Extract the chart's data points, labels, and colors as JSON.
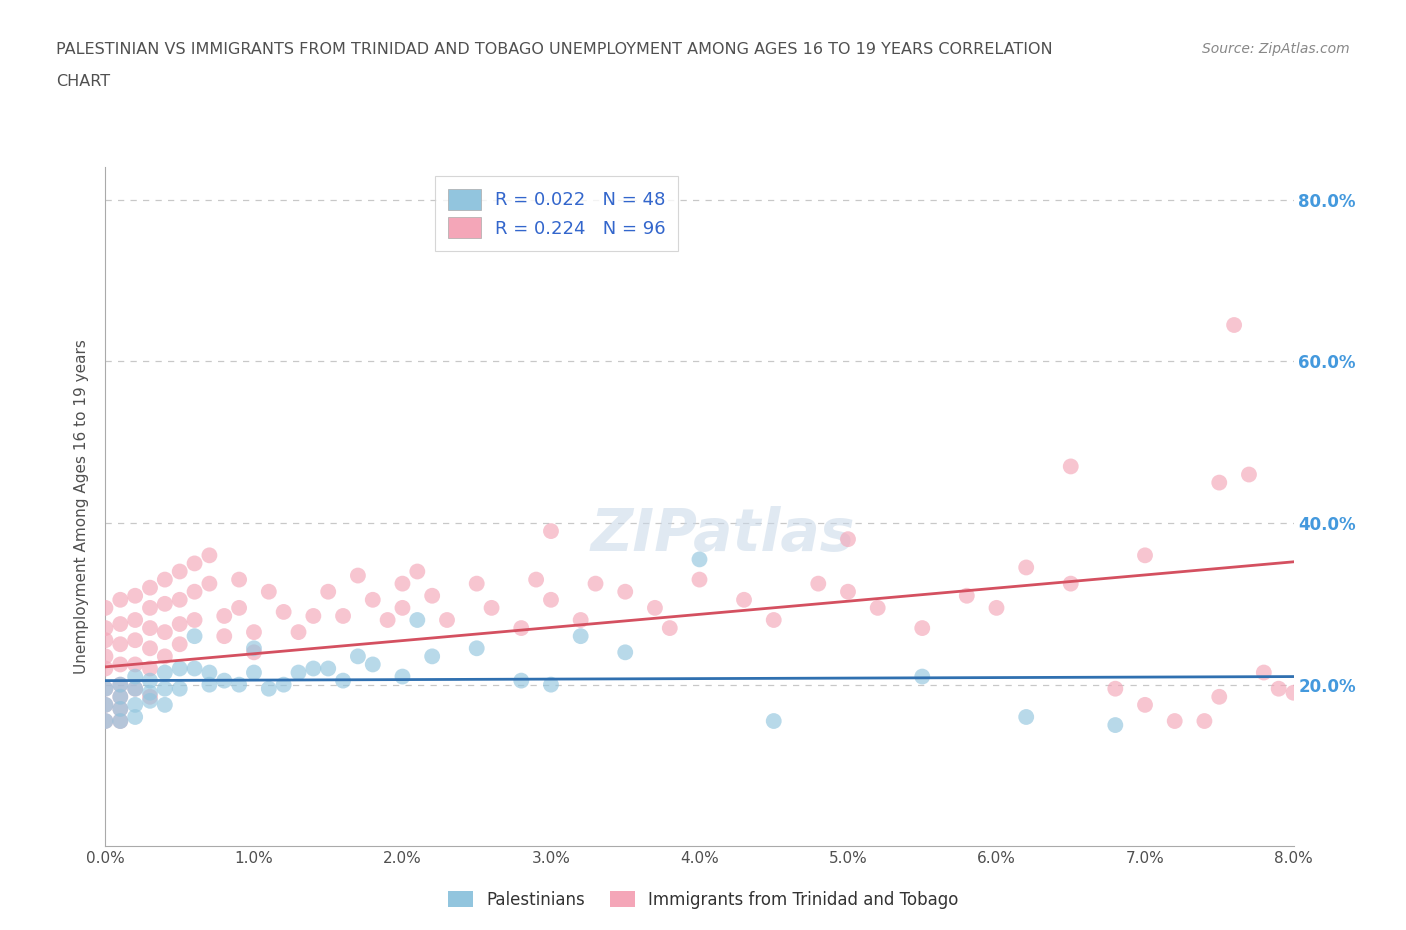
{
  "title_line1": "PALESTINIAN VS IMMIGRANTS FROM TRINIDAD AND TOBAGO UNEMPLOYMENT AMONG AGES 16 TO 19 YEARS CORRELATION",
  "title_line2": "CHART",
  "source": "Source: ZipAtlas.com",
  "ylabel": "Unemployment Among Ages 16 to 19 years",
  "xlim": [
    0.0,
    0.08
  ],
  "ylim": [
    0.0,
    0.84
  ],
  "xticks": [
    0.0,
    0.01,
    0.02,
    0.03,
    0.04,
    0.05,
    0.06,
    0.07,
    0.08
  ],
  "xticklabels": [
    "0.0%",
    "1.0%",
    "2.0%",
    "3.0%",
    "4.0%",
    "5.0%",
    "6.0%",
    "7.0%",
    "8.0%"
  ],
  "ytick_positions": [
    0.2,
    0.4,
    0.6,
    0.8
  ],
  "ytick_labels_right": [
    "20.0%",
    "40.0%",
    "60.0%",
    "80.0%"
  ],
  "r_blue": 0.022,
  "n_blue": 48,
  "r_pink": 0.224,
  "n_pink": 96,
  "blue_color": "#92c5de",
  "pink_color": "#f4a6b8",
  "blue_line_color": "#3070b0",
  "pink_line_color": "#d45060",
  "watermark": "ZIPatlas",
  "blue_scatter_x": [
    0.0,
    0.0,
    0.0,
    0.001,
    0.001,
    0.001,
    0.001,
    0.002,
    0.002,
    0.002,
    0.002,
    0.003,
    0.003,
    0.003,
    0.004,
    0.004,
    0.004,
    0.005,
    0.005,
    0.006,
    0.006,
    0.007,
    0.007,
    0.008,
    0.009,
    0.01,
    0.01,
    0.011,
    0.012,
    0.013,
    0.014,
    0.015,
    0.016,
    0.017,
    0.018,
    0.02,
    0.021,
    0.022,
    0.025,
    0.028,
    0.03,
    0.032,
    0.035,
    0.04,
    0.045,
    0.055,
    0.062,
    0.068
  ],
  "blue_scatter_y": [
    0.195,
    0.175,
    0.155,
    0.2,
    0.185,
    0.17,
    0.155,
    0.21,
    0.195,
    0.175,
    0.16,
    0.205,
    0.19,
    0.18,
    0.215,
    0.195,
    0.175,
    0.22,
    0.195,
    0.26,
    0.22,
    0.215,
    0.2,
    0.205,
    0.2,
    0.245,
    0.215,
    0.195,
    0.2,
    0.215,
    0.22,
    0.22,
    0.205,
    0.235,
    0.225,
    0.21,
    0.28,
    0.235,
    0.245,
    0.205,
    0.2,
    0.26,
    0.24,
    0.355,
    0.155,
    0.21,
    0.16,
    0.15
  ],
  "pink_scatter_x": [
    0.0,
    0.0,
    0.0,
    0.0,
    0.0,
    0.0,
    0.0,
    0.0,
    0.001,
    0.001,
    0.001,
    0.001,
    0.001,
    0.001,
    0.001,
    0.001,
    0.002,
    0.002,
    0.002,
    0.002,
    0.002,
    0.003,
    0.003,
    0.003,
    0.003,
    0.003,
    0.003,
    0.004,
    0.004,
    0.004,
    0.004,
    0.005,
    0.005,
    0.005,
    0.005,
    0.006,
    0.006,
    0.006,
    0.007,
    0.007,
    0.008,
    0.008,
    0.009,
    0.009,
    0.01,
    0.01,
    0.011,
    0.012,
    0.013,
    0.014,
    0.015,
    0.016,
    0.017,
    0.018,
    0.019,
    0.02,
    0.02,
    0.021,
    0.022,
    0.023,
    0.025,
    0.026,
    0.028,
    0.029,
    0.03,
    0.032,
    0.033,
    0.035,
    0.037,
    0.038,
    0.04,
    0.043,
    0.045,
    0.048,
    0.05,
    0.052,
    0.055,
    0.058,
    0.06,
    0.062,
    0.065,
    0.068,
    0.07,
    0.072,
    0.074,
    0.075,
    0.076,
    0.077,
    0.078,
    0.079,
    0.03,
    0.05,
    0.065,
    0.07,
    0.075,
    0.08
  ],
  "pink_scatter_y": [
    0.22,
    0.255,
    0.295,
    0.27,
    0.235,
    0.195,
    0.175,
    0.155,
    0.305,
    0.275,
    0.25,
    0.225,
    0.2,
    0.185,
    0.17,
    0.155,
    0.31,
    0.28,
    0.255,
    0.225,
    0.195,
    0.32,
    0.295,
    0.27,
    0.245,
    0.22,
    0.185,
    0.33,
    0.3,
    0.265,
    0.235,
    0.34,
    0.305,
    0.275,
    0.25,
    0.35,
    0.315,
    0.28,
    0.36,
    0.325,
    0.285,
    0.26,
    0.33,
    0.295,
    0.265,
    0.24,
    0.315,
    0.29,
    0.265,
    0.285,
    0.315,
    0.285,
    0.335,
    0.305,
    0.28,
    0.325,
    0.295,
    0.34,
    0.31,
    0.28,
    0.325,
    0.295,
    0.27,
    0.33,
    0.305,
    0.28,
    0.325,
    0.315,
    0.295,
    0.27,
    0.33,
    0.305,
    0.28,
    0.325,
    0.315,
    0.295,
    0.27,
    0.31,
    0.295,
    0.345,
    0.325,
    0.195,
    0.175,
    0.155,
    0.155,
    0.185,
    0.645,
    0.46,
    0.215,
    0.195,
    0.39,
    0.38,
    0.47,
    0.36,
    0.45,
    0.19
  ],
  "legend_labels": [
    "Palestinians",
    "Immigrants from Trinidad and Tobago"
  ],
  "background_color": "#ffffff",
  "grid_color": "#c8c8c8",
  "title_color": "#505050",
  "axis_label_color": "#505050",
  "tick_color": "#505050"
}
